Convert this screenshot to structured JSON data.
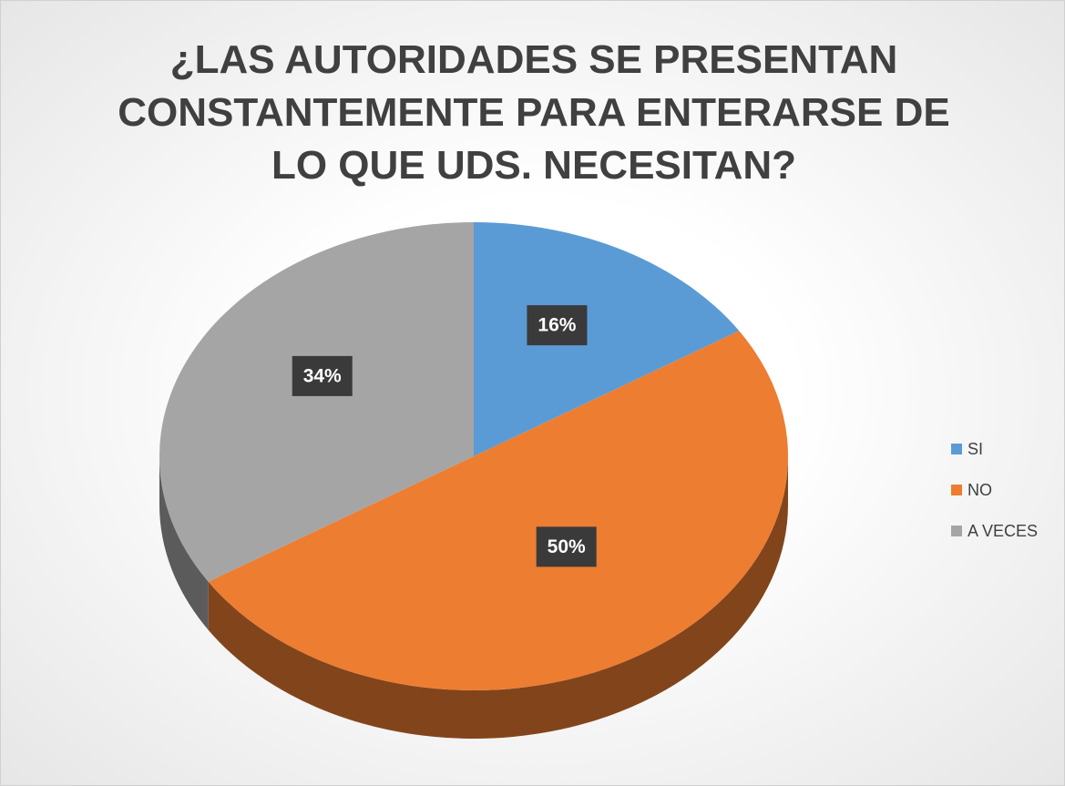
{
  "chart_data": {
    "type": "pie",
    "title": "¿LAS AUTORIDADES SE PRESENTAN CONSTANTEMENTE PARA ENTERARSE DE LO QUE UDS. NECESITAN?",
    "categories": [
      "SI",
      "NO",
      "A VECES"
    ],
    "values": [
      16,
      50,
      34
    ],
    "value_labels": [
      "16%",
      "50%",
      "34%"
    ],
    "colors": [
      "#5b9bd5",
      "#ed7d31",
      "#a5a5a5"
    ],
    "legend": "right"
  }
}
